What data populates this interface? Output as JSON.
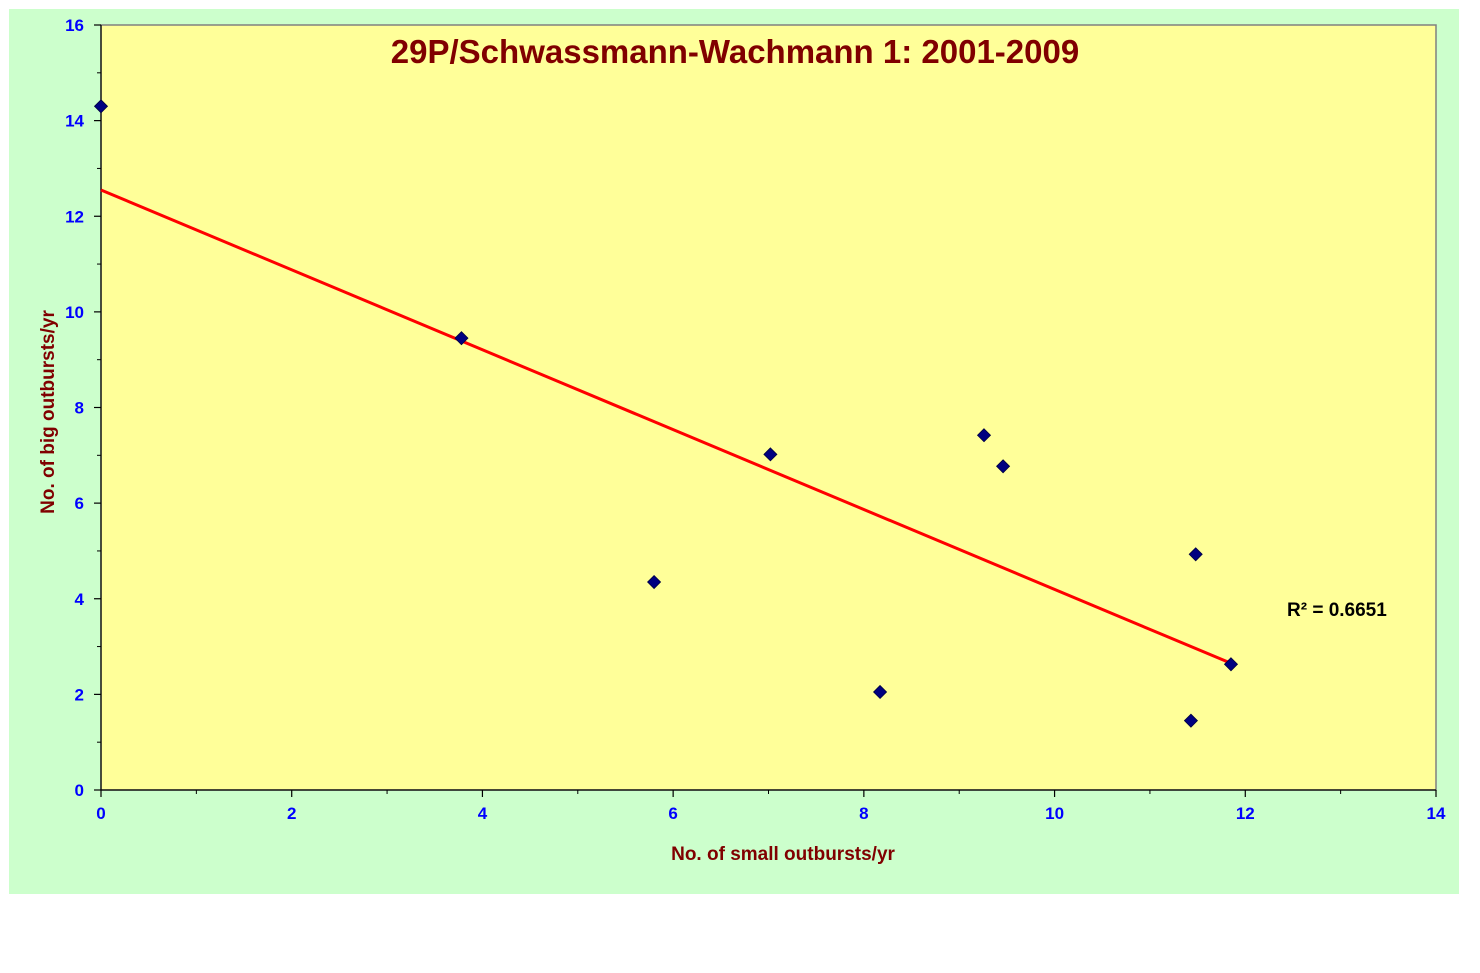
{
  "chart_data": {
    "type": "scatter",
    "title": "29P/Schwassmann-Wachmann 1: 2001-2009",
    "xlabel": "No. of small  outbursts/yr",
    "ylabel": "No. of big  outbursts/yr",
    "xlim": [
      0,
      14
    ],
    "ylim": [
      0,
      16
    ],
    "xticks": [
      0,
      2,
      4,
      6,
      8,
      10,
      12,
      14
    ],
    "yticks": [
      0,
      2,
      4,
      6,
      8,
      10,
      12,
      14,
      16
    ],
    "grid": false,
    "series": [
      {
        "x": [
          0.0,
          3.78,
          5.8,
          7.02,
          8.17,
          9.26,
          9.46,
          11.43,
          11.48,
          11.85
        ],
        "y": [
          14.3,
          9.45,
          4.35,
          7.02,
          2.05,
          7.42,
          6.77,
          1.45,
          4.93,
          2.63
        ]
      }
    ],
    "trendline": {
      "type": "linear",
      "x_start": 0,
      "x_end": 11.85,
      "y_start": 12.55,
      "y_end": 2.65
    },
    "annotation": "R² = 0.6651"
  },
  "colors": {
    "outer_background": "#ccffcc",
    "plot_background": "#ffff99",
    "marker": "#000080",
    "trendline": "#ff0000",
    "tick_labels": "#0000ff",
    "titles": "#800000"
  }
}
